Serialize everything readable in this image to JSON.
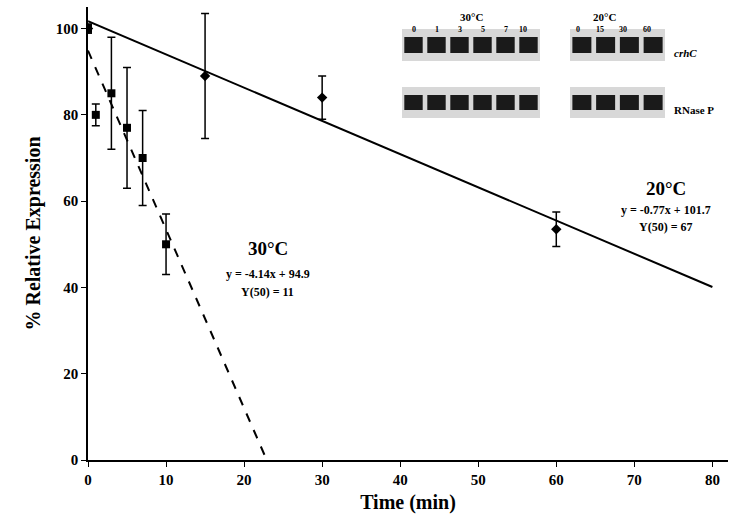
{
  "chart_data": {
    "type": "scatter",
    "x_label": "Time (min)",
    "y_label": "% Relative Expression",
    "xlim": [
      0,
      82
    ],
    "xticks": [
      0,
      10,
      20,
      30,
      40,
      50,
      60,
      70,
      80
    ],
    "ylim": [
      0,
      105
    ],
    "yticks": [
      0,
      20,
      40,
      60,
      80,
      100
    ],
    "grid": false,
    "series": [
      {
        "name": "30°C",
        "color": "#000000",
        "marker": "square",
        "line_style": "dashed",
        "x": [
          0,
          1,
          3,
          5,
          7,
          10
        ],
        "values": [
          100,
          80,
          85,
          77,
          70,
          50
        ],
        "error": [
          1,
          2.5,
          13,
          14,
          11,
          7
        ],
        "fit": {
          "x": [
            0,
            22.9
          ],
          "values": [
            94.9,
            0
          ]
        },
        "equation": "y = -4.14x + 94.9",
        "y50_label": "Y(50) = 11"
      },
      {
        "name": "20°C",
        "color": "#000000",
        "marker": "diamond",
        "line_style": "solid",
        "x": [
          0,
          15,
          30,
          60
        ],
        "values": [
          100,
          89,
          84,
          53.5
        ],
        "error": [
          1,
          14.5,
          5,
          4
        ],
        "fit": {
          "x": [
            0,
            80
          ],
          "values": [
            101.7,
            40.1
          ]
        },
        "equation": "y = -0.77x + 101.7",
        "y50_label": "Y(50) = 67"
      }
    ],
    "inset": {
      "panels": [
        {
          "title": "30°C",
          "lanes": [
            0,
            1,
            3,
            5,
            7,
            10
          ]
        },
        {
          "title": "20°C",
          "lanes": [
            0,
            15,
            30,
            60
          ]
        }
      ],
      "rows": [
        "crhC",
        "RNase P"
      ]
    }
  }
}
